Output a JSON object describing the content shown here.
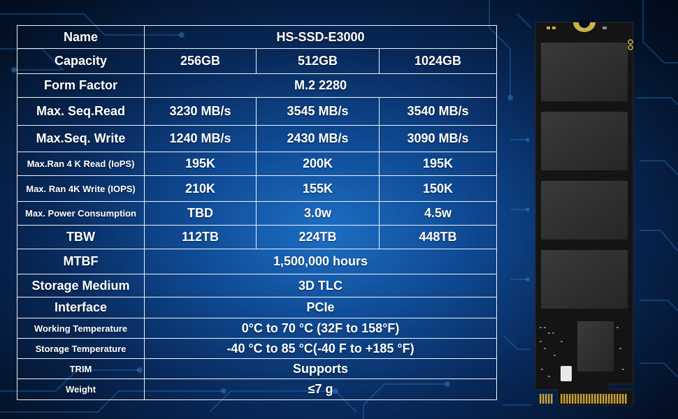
{
  "colors": {
    "background_center": "#1d6fc4",
    "background_edge": "#020a18",
    "grid_line": "#eef3fa",
    "text": "#ffffff",
    "pcb": "#151515",
    "chip": "#2e2e2e",
    "gold": "#c8a03a"
  },
  "table": {
    "rows": [
      {
        "label": "Name",
        "value": "HS-SSD-E3000"
      },
      {
        "label": "Capacity",
        "values": [
          "256GB",
          "512GB",
          "1024GB"
        ]
      },
      {
        "label": "Form Factor",
        "value": "M.2 2280"
      },
      {
        "label": "Max. Seq.Read",
        "values": [
          "3230 MB/s",
          "3545 MB/s",
          "3540 MB/s"
        ]
      },
      {
        "label": "Max.Seq. Write",
        "values": [
          "1240 MB/s",
          "2430 MB/s",
          "3090 MB/s"
        ]
      },
      {
        "label": "Max.Ran 4 K Read (IoPS)",
        "values": [
          "195K",
          "200K",
          "195K"
        ]
      },
      {
        "label": "Max. Ran 4K Write (IOPS)",
        "values": [
          "210K",
          "155K",
          "150K"
        ]
      },
      {
        "label": "Max. Power Consumption",
        "values": [
          "TBD",
          "3.0w",
          "4.5w"
        ]
      },
      {
        "label": "TBW",
        "values": [
          "112TB",
          "224TB",
          "448TB"
        ]
      },
      {
        "label": "MTBF",
        "value": "1,500,000 hours"
      },
      {
        "label": "Storage Medium",
        "value": "3D TLC"
      },
      {
        "label": "Interface",
        "value": "PCIe"
      },
      {
        "label": "Working Temperature",
        "value": "0°C to 70 °C (32F to 158°F)"
      },
      {
        "label": "Storage Temperature",
        "value": "-40 °C to 85 °C(-40 F to +185 °F)"
      },
      {
        "label": "TRIM",
        "value": "Supports"
      },
      {
        "label": "Weight",
        "value": "≤7 g"
      }
    ]
  },
  "product_image": {
    "icon": "m2-ssd-icon"
  }
}
